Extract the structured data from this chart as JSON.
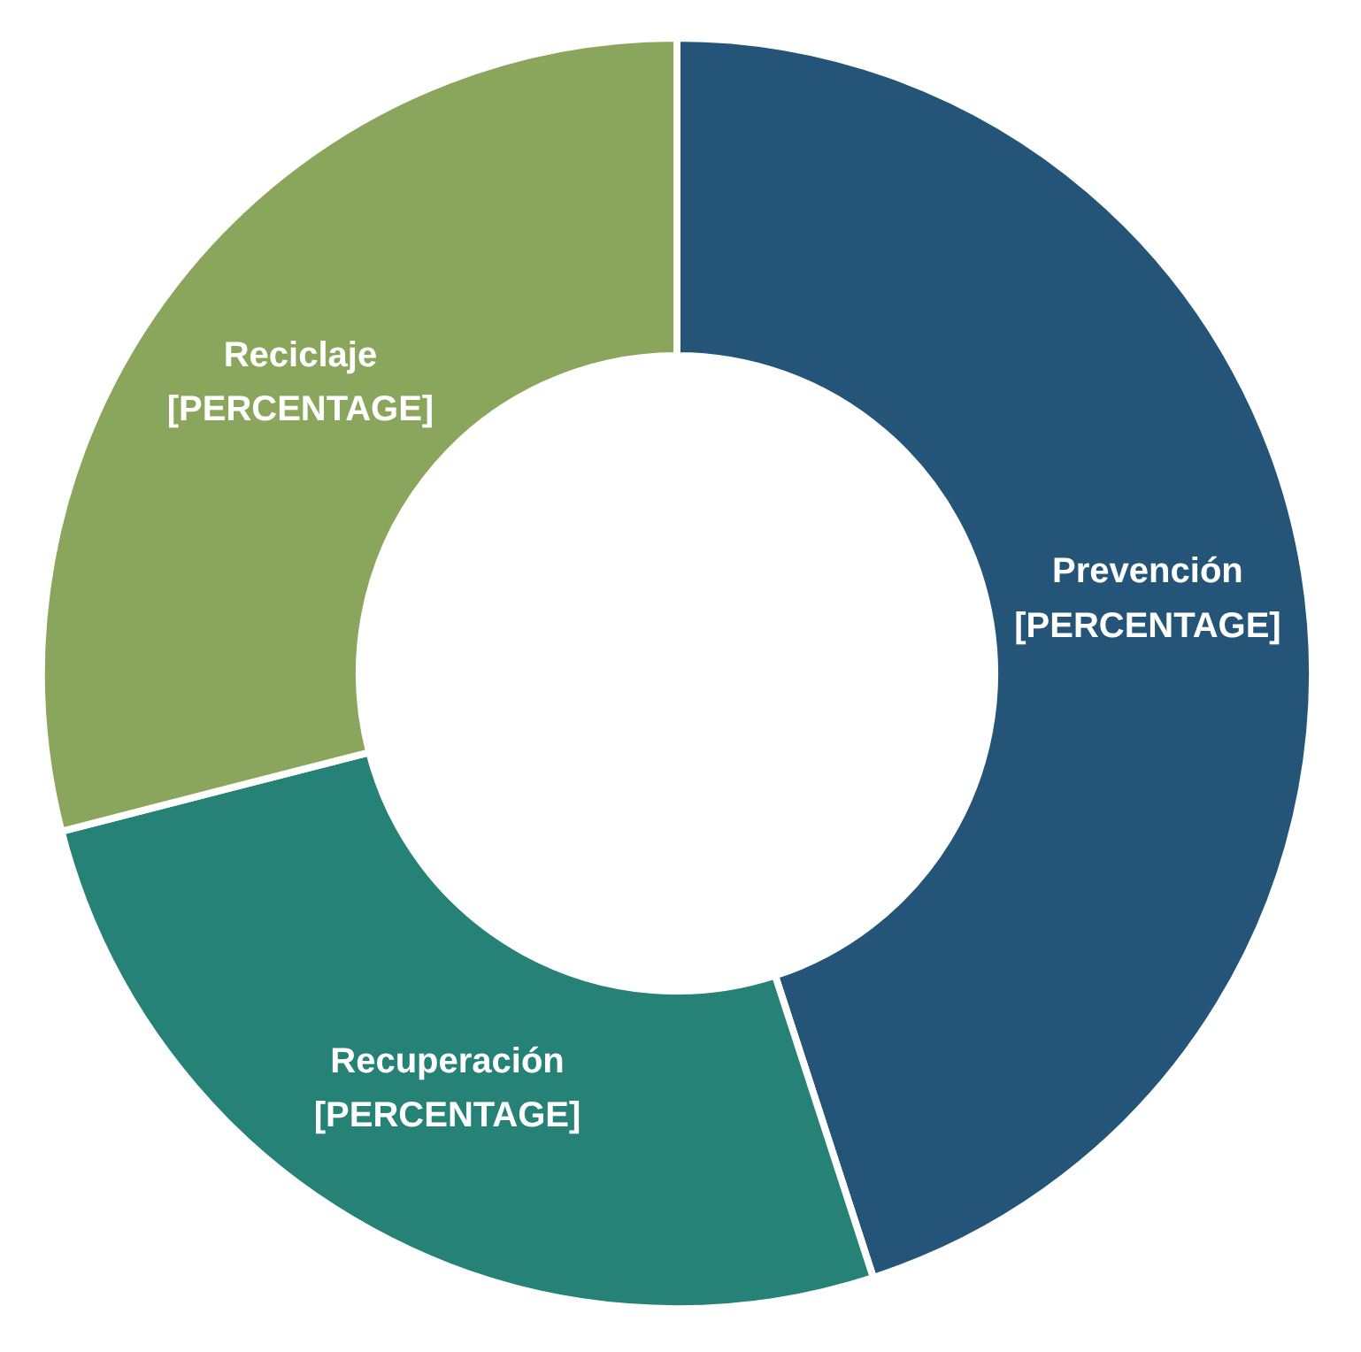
{
  "chart_data": {
    "type": "donut",
    "categories": [
      "Prevención",
      "Recuperación",
      "Reciclaje"
    ],
    "values": [
      45,
      26,
      29
    ],
    "colors": [
      "#245579",
      "#268276",
      "#8aa65c"
    ],
    "value_labels": [
      "[PERCENTAGE]",
      "[PERCENTAGE]",
      "[PERCENTAGE]"
    ]
  }
}
